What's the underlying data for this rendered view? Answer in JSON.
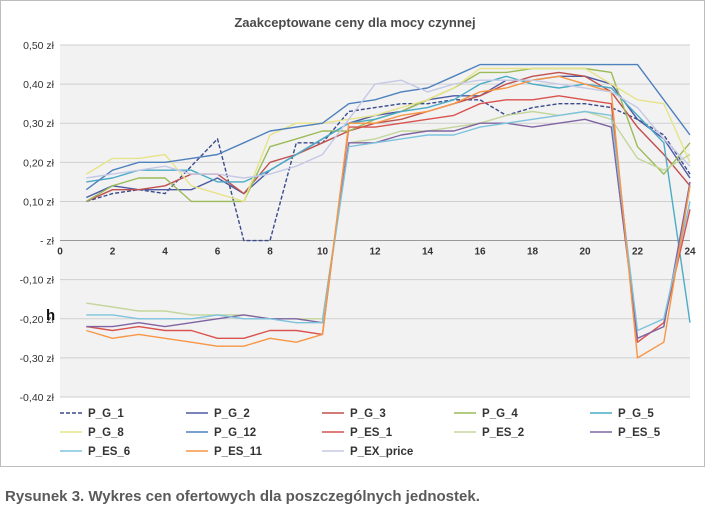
{
  "caption": "Rysunek 3. Wykres cen ofertowych dla poszczególnych jednostek.",
  "side_mark": "h",
  "chart_data": {
    "type": "line",
    "title": "Zaakceptowane ceny dla mocy czynnej",
    "xlabel": "",
    "ylabel": "",
    "xlim": [
      0,
      24
    ],
    "ylim": [
      -0.4,
      0.5
    ],
    "x_ticks": [
      0,
      2,
      4,
      6,
      8,
      10,
      12,
      14,
      16,
      18,
      20,
      22,
      24
    ],
    "y_ticks": [
      {
        "value": 0.5,
        "label": "0,50 zł"
      },
      {
        "value": 0.4,
        "label": "0,40 zł"
      },
      {
        "value": 0.3,
        "label": "0,30 zł"
      },
      {
        "value": 0.2,
        "label": "0,20 zł"
      },
      {
        "value": 0.1,
        "label": "0,10 zł"
      },
      {
        "value": 0.0,
        "label": "- zł"
      },
      {
        "value": -0.1,
        "label": "-0,10 zł"
      },
      {
        "value": -0.2,
        "label": "-0,20 zł"
      },
      {
        "value": -0.3,
        "label": "-0,30 zł"
      },
      {
        "value": -0.4,
        "label": "-0,40 zł"
      }
    ],
    "grid": true,
    "legend_position": "bottom",
    "x": [
      1,
      2,
      3,
      4,
      5,
      6,
      7,
      8,
      9,
      10,
      11,
      12,
      13,
      14,
      15,
      16,
      17,
      18,
      19,
      20,
      21,
      22,
      23,
      24
    ],
    "series": [
      {
        "name": "P_G_1",
        "color": "#3b4a8c",
        "dash": true,
        "values": [
          0.1,
          0.12,
          0.13,
          0.12,
          0.19,
          0.26,
          0.0,
          0.0,
          0.25,
          0.25,
          0.33,
          0.34,
          0.35,
          0.35,
          0.36,
          0.36,
          0.32,
          0.34,
          0.35,
          0.35,
          0.34,
          0.31,
          0.27,
          0.17
        ]
      },
      {
        "name": "P_G_2",
        "color": "#4e5ba3",
        "values": [
          0.11,
          0.14,
          0.13,
          0.13,
          0.13,
          0.16,
          0.12,
          0.18,
          0.22,
          0.26,
          0.3,
          0.32,
          0.33,
          0.36,
          0.37,
          0.37,
          0.41,
          0.41,
          0.42,
          0.42,
          0.4,
          0.31,
          0.26,
          0.16
        ]
      },
      {
        "name": "P_G_3",
        "color": "#c0504d",
        "values": [
          0.1,
          0.13,
          0.13,
          0.14,
          0.17,
          0.17,
          0.12,
          0.2,
          0.22,
          0.25,
          0.28,
          0.3,
          0.31,
          0.33,
          0.35,
          0.37,
          0.4,
          0.42,
          0.43,
          0.42,
          0.38,
          0.29,
          0.22,
          0.14
        ]
      },
      {
        "name": "P_G_4",
        "color": "#9bbb59",
        "values": [
          0.1,
          0.14,
          0.16,
          0.16,
          0.1,
          0.1,
          0.1,
          0.24,
          0.26,
          0.28,
          0.28,
          0.31,
          0.33,
          0.36,
          0.39,
          0.43,
          0.43,
          0.44,
          0.44,
          0.44,
          0.43,
          0.24,
          0.17,
          0.25
        ]
      },
      {
        "name": "P_G_5",
        "color": "#4bacc6",
        "values": [
          0.15,
          0.16,
          0.18,
          0.18,
          0.18,
          0.15,
          0.15,
          0.18,
          0.22,
          0.26,
          0.3,
          0.31,
          0.33,
          0.34,
          0.36,
          0.4,
          0.42,
          0.4,
          0.39,
          0.4,
          0.39,
          0.32,
          0.25,
          -0.21
        ]
      },
      {
        "name": "P_G_8",
        "color": "#e7e38a",
        "values": [
          0.17,
          0.21,
          0.21,
          0.22,
          0.14,
          0.12,
          0.1,
          0.27,
          0.3,
          0.3,
          0.31,
          0.32,
          0.34,
          0.36,
          0.39,
          0.44,
          0.44,
          0.44,
          0.44,
          0.44,
          0.4,
          0.36,
          0.35,
          0.2
        ]
      },
      {
        "name": "P_G_12",
        "color": "#4f81bd",
        "values": [
          0.13,
          0.18,
          0.2,
          0.2,
          0.21,
          0.22,
          0.25,
          0.28,
          0.29,
          0.3,
          0.35,
          0.36,
          0.38,
          0.39,
          0.42,
          0.45,
          0.45,
          0.45,
          0.45,
          0.45,
          0.45,
          0.45,
          0.36,
          0.27
        ]
      },
      {
        "name": "P_ES_1",
        "color": "#d9534f",
        "values": [
          -0.22,
          -0.23,
          -0.22,
          -0.23,
          -0.23,
          -0.25,
          -0.25,
          -0.23,
          -0.23,
          -0.24,
          0.29,
          0.29,
          0.3,
          0.31,
          0.32,
          0.35,
          0.36,
          0.36,
          0.37,
          0.36,
          0.35,
          -0.26,
          -0.21,
          0.08
        ]
      },
      {
        "name": "P_ES_2",
        "color": "#c3d69b",
        "values": [
          -0.16,
          -0.17,
          -0.18,
          -0.18,
          -0.19,
          -0.19,
          -0.19,
          -0.2,
          -0.2,
          -0.2,
          0.25,
          0.26,
          0.28,
          0.28,
          0.29,
          0.3,
          0.32,
          0.33,
          0.32,
          0.33,
          0.31,
          0.21,
          0.18,
          0.22
        ]
      },
      {
        "name": "P_ES_5",
        "color": "#8064a2",
        "values": [
          -0.22,
          -0.22,
          -0.21,
          -0.22,
          -0.21,
          -0.2,
          -0.19,
          -0.2,
          -0.2,
          -0.21,
          0.25,
          0.25,
          0.27,
          0.28,
          0.28,
          0.3,
          0.3,
          0.29,
          0.3,
          0.31,
          0.29,
          -0.25,
          -0.22,
          0.15
        ]
      },
      {
        "name": "P_ES_6",
        "color": "#7ec3dd",
        "values": [
          -0.19,
          -0.19,
          -0.2,
          -0.2,
          -0.2,
          -0.19,
          -0.2,
          -0.2,
          -0.21,
          -0.21,
          0.24,
          0.25,
          0.26,
          0.27,
          0.27,
          0.29,
          0.3,
          0.31,
          0.32,
          0.33,
          0.32,
          -0.23,
          -0.2,
          0.1
        ]
      },
      {
        "name": "P_ES_11",
        "color": "#f79646",
        "values": [
          -0.23,
          -0.25,
          -0.24,
          -0.25,
          -0.26,
          -0.27,
          -0.27,
          -0.25,
          -0.26,
          -0.24,
          0.3,
          0.3,
          0.32,
          0.33,
          0.35,
          0.38,
          0.39,
          0.41,
          0.42,
          0.4,
          0.38,
          -0.3,
          -0.26,
          0.14
        ]
      },
      {
        "name": "P_EX_price",
        "color": "#c6c9e6",
        "values": [
          0.16,
          0.17,
          0.18,
          0.19,
          0.17,
          0.17,
          0.16,
          0.17,
          0.19,
          0.22,
          0.31,
          0.4,
          0.41,
          0.38,
          0.4,
          0.41,
          0.41,
          0.41,
          0.4,
          0.39,
          0.38,
          0.34,
          0.26,
          0.19
        ]
      }
    ]
  }
}
